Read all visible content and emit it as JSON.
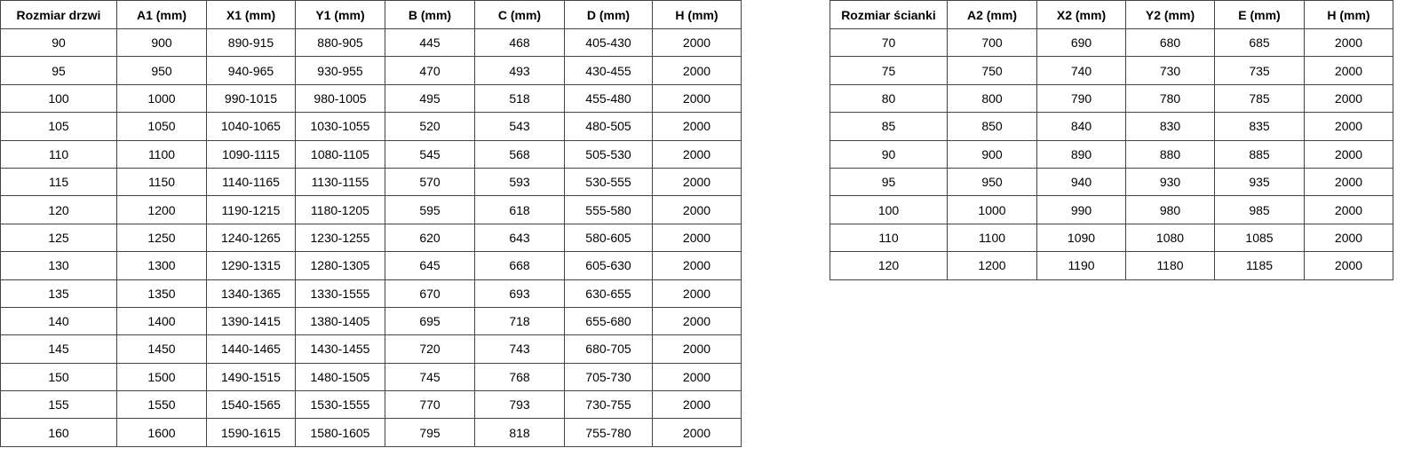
{
  "doors_table": {
    "headers": [
      "Rozmiar drzwi",
      "A1 (mm)",
      "X1 (mm)",
      "Y1 (mm)",
      "B (mm)",
      "C (mm)",
      "D (mm)",
      "H (mm)"
    ],
    "rows": [
      [
        "90",
        "900",
        "890-915",
        "880-905",
        "445",
        "468",
        "405-430",
        "2000"
      ],
      [
        "95",
        "950",
        "940-965",
        "930-955",
        "470",
        "493",
        "430-455",
        "2000"
      ],
      [
        "100",
        "1000",
        "990-1015",
        "980-1005",
        "495",
        "518",
        "455-480",
        "2000"
      ],
      [
        "105",
        "1050",
        "1040-1065",
        "1030-1055",
        "520",
        "543",
        "480-505",
        "2000"
      ],
      [
        "110",
        "1100",
        "1090-1115",
        "1080-1105",
        "545",
        "568",
        "505-530",
        "2000"
      ],
      [
        "115",
        "1150",
        "1140-1165",
        "1130-1155",
        "570",
        "593",
        "530-555",
        "2000"
      ],
      [
        "120",
        "1200",
        "1190-1215",
        "1180-1205",
        "595",
        "618",
        "555-580",
        "2000"
      ],
      [
        "125",
        "1250",
        "1240-1265",
        "1230-1255",
        "620",
        "643",
        "580-605",
        "2000"
      ],
      [
        "130",
        "1300",
        "1290-1315",
        "1280-1305",
        "645",
        "668",
        "605-630",
        "2000"
      ],
      [
        "135",
        "1350",
        "1340-1365",
        "1330-1555",
        "670",
        "693",
        "630-655",
        "2000"
      ],
      [
        "140",
        "1400",
        "1390-1415",
        "1380-1405",
        "695",
        "718",
        "655-680",
        "2000"
      ],
      [
        "145",
        "1450",
        "1440-1465",
        "1430-1455",
        "720",
        "743",
        "680-705",
        "2000"
      ],
      [
        "150",
        "1500",
        "1490-1515",
        "1480-1505",
        "745",
        "768",
        "705-730",
        "2000"
      ],
      [
        "155",
        "1550",
        "1540-1565",
        "1530-1555",
        "770",
        "793",
        "730-755",
        "2000"
      ],
      [
        "160",
        "1600",
        "1590-1615",
        "1580-1605",
        "795",
        "818",
        "755-780",
        "2000"
      ]
    ]
  },
  "wall_table": {
    "headers": [
      "Rozmiar ścianki",
      "A2 (mm)",
      "X2 (mm)",
      "Y2 (mm)",
      "E (mm)",
      "H (mm)"
    ],
    "rows": [
      [
        "70",
        "700",
        "690",
        "680",
        "685",
        "2000"
      ],
      [
        "75",
        "750",
        "740",
        "730",
        "735",
        "2000"
      ],
      [
        "80",
        "800",
        "790",
        "780",
        "785",
        "2000"
      ],
      [
        "85",
        "850",
        "840",
        "830",
        "835",
        "2000"
      ],
      [
        "90",
        "900",
        "890",
        "880",
        "885",
        "2000"
      ],
      [
        "95",
        "950",
        "940",
        "930",
        "935",
        "2000"
      ],
      [
        "100",
        "1000",
        "990",
        "980",
        "985",
        "2000"
      ],
      [
        "110",
        "1100",
        "1090",
        "1080",
        "1085",
        "2000"
      ],
      [
        "120",
        "1200",
        "1190",
        "1180",
        "1185",
        "2000"
      ]
    ]
  }
}
